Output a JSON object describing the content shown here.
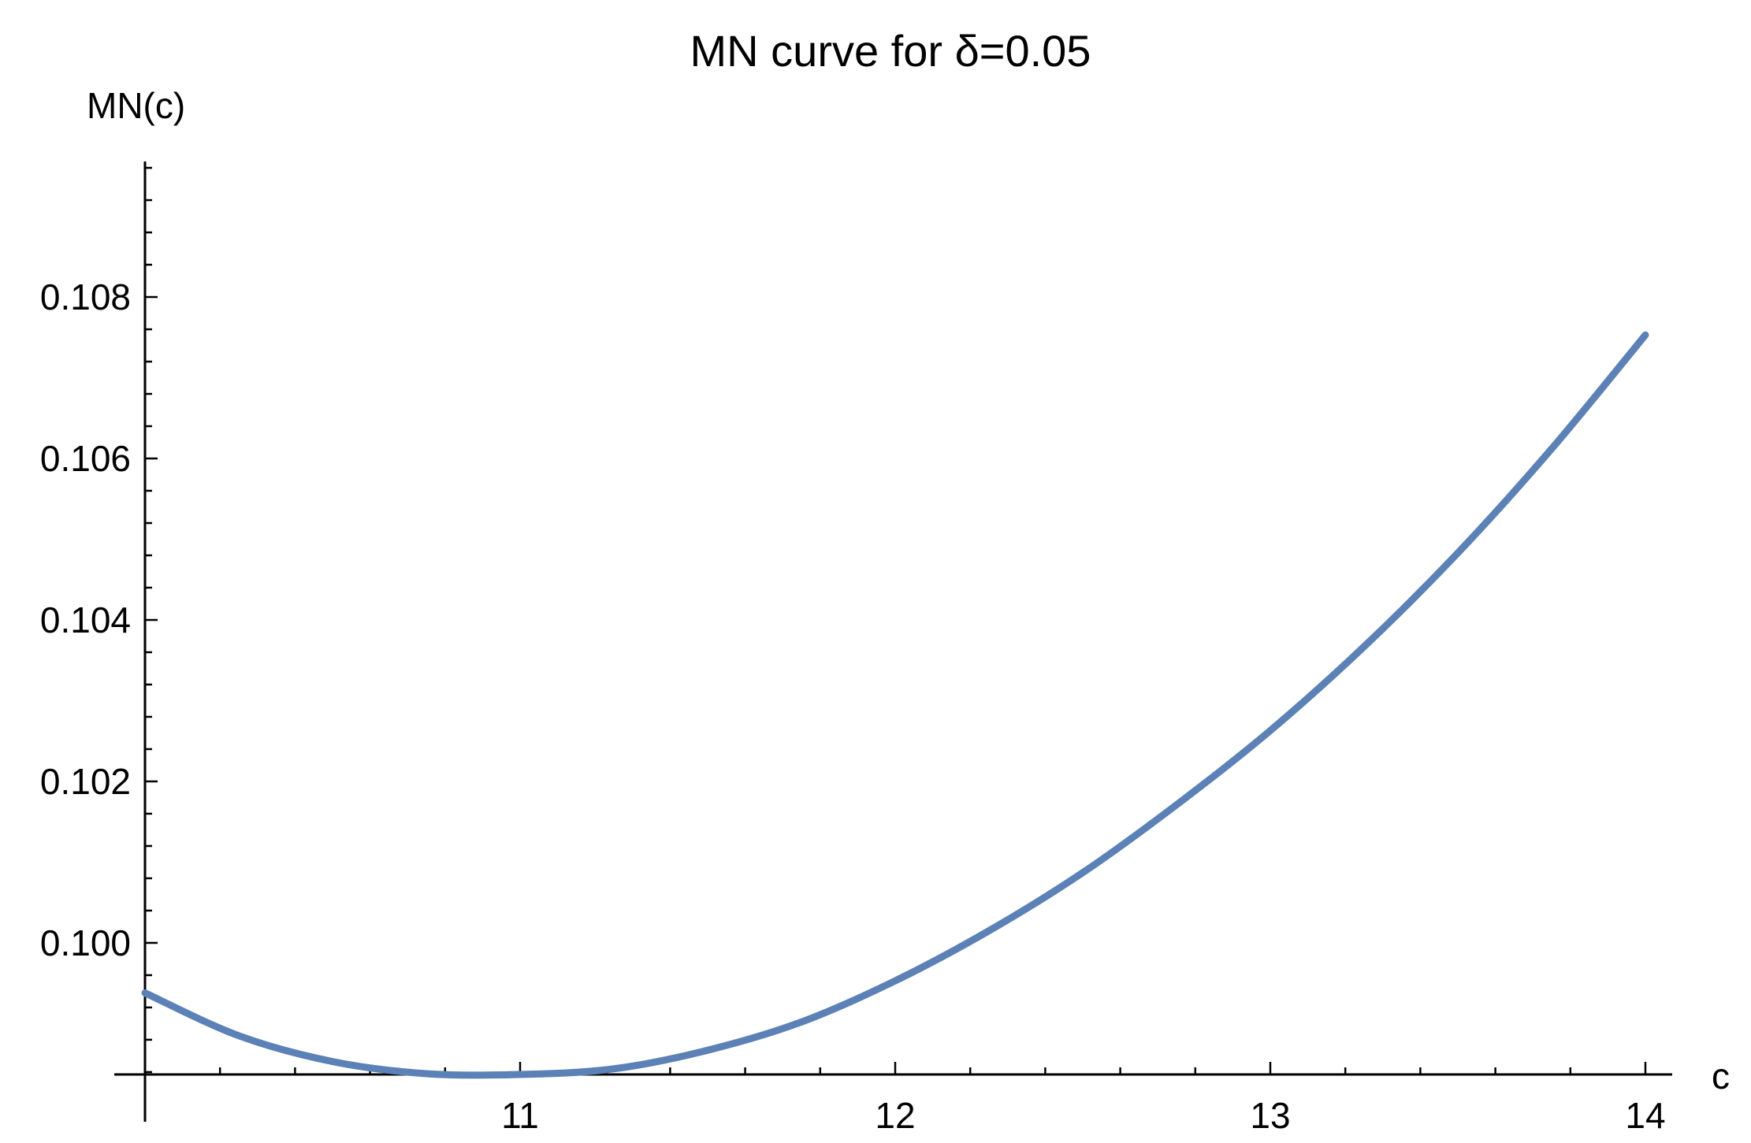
{
  "chart_data": {
    "type": "line",
    "title": "MN curve for δ=0.05",
    "xlabel": "c",
    "ylabel": "MN(c)",
    "xlim": [
      10.0,
      14.0
    ],
    "ylim": [
      0.09837,
      0.10963
    ],
    "x_ticks": [
      11,
      12,
      13,
      14
    ],
    "x_tick_labels": [
      "11",
      "12",
      "13",
      "14"
    ],
    "y_ticks": [
      0.1,
      0.102,
      0.104,
      0.106,
      0.108
    ],
    "y_tick_labels": [
      "0.100",
      "0.102",
      "0.104",
      "0.106",
      "0.108"
    ],
    "grid": false,
    "line_color": "#5c81b6",
    "series": [
      {
        "x": [
          10.0,
          10.25,
          10.5,
          10.75,
          11.0,
          11.25,
          11.5,
          11.75,
          12.0,
          12.25,
          12.5,
          12.75,
          13.0,
          13.25,
          13.5,
          13.75,
          14.0
        ],
        "values": [
          0.09938,
          0.09885,
          0.09853,
          0.09838,
          0.09837,
          0.09844,
          0.09867,
          0.09902,
          0.09953,
          0.10015,
          0.10087,
          0.10171,
          0.10263,
          0.10367,
          0.10483,
          0.10612,
          0.10753
        ]
      }
    ]
  }
}
